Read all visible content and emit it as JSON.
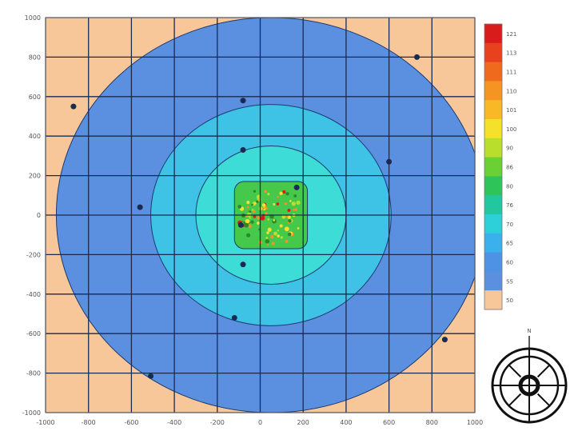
{
  "chart_data": {
    "type": "heatmap",
    "subtype": "contour",
    "title": "",
    "xlabel": "",
    "ylabel": "",
    "xlim": [
      -1000,
      1000
    ],
    "ylim": [
      -1000,
      1000
    ],
    "grid": true,
    "x_ticks": [
      "-1000",
      "-800",
      "-600",
      "-400",
      "-200",
      "0",
      "200",
      "400",
      "600",
      "800",
      "1000"
    ],
    "y_ticks": [
      "1000",
      "800",
      "600",
      "400",
      "200",
      "0",
      "-200",
      "-400",
      "-600",
      "-800",
      "-1000"
    ],
    "contour_levels": [
      {
        "radius": 1000,
        "color": "#5b8fe0"
      },
      {
        "radius": 560,
        "color": "#3ec2e6"
      },
      {
        "radius": 350,
        "color": "#3edcd6"
      },
      {
        "radius": 170,
        "color": "#46c84a"
      }
    ],
    "center": [
      50,
      0
    ],
    "outside_color": "#f7c79a",
    "markers": [
      [
        -870,
        550
      ],
      [
        730,
        800
      ],
      [
        -80,
        580
      ],
      [
        -80,
        330
      ],
      [
        -560,
        40
      ],
      [
        600,
        270
      ],
      [
        -90,
        -50
      ],
      [
        -80,
        -250
      ],
      [
        -120,
        -520
      ],
      [
        -510,
        -815
      ],
      [
        860,
        -630
      ],
      [
        170,
        140
      ]
    ],
    "colorbar": {
      "labels": [
        "121",
        "113",
        "111",
        "110",
        "101",
        "100",
        "90",
        "86",
        "80",
        "76",
        "70",
        "65",
        "60",
        "55",
        "50"
      ],
      "colors": [
        "#d81b1b",
        "#e8411d",
        "#f06a1e",
        "#f59323",
        "#f9b825",
        "#f5e12c",
        "#b9de2c",
        "#6bd034",
        "#2fc45a",
        "#22c7a0",
        "#2dd0d8",
        "#3ab0ec",
        "#4d92e4",
        "#5b8fe0",
        "#f7c79a"
      ]
    },
    "compass": {
      "label": "N"
    }
  }
}
